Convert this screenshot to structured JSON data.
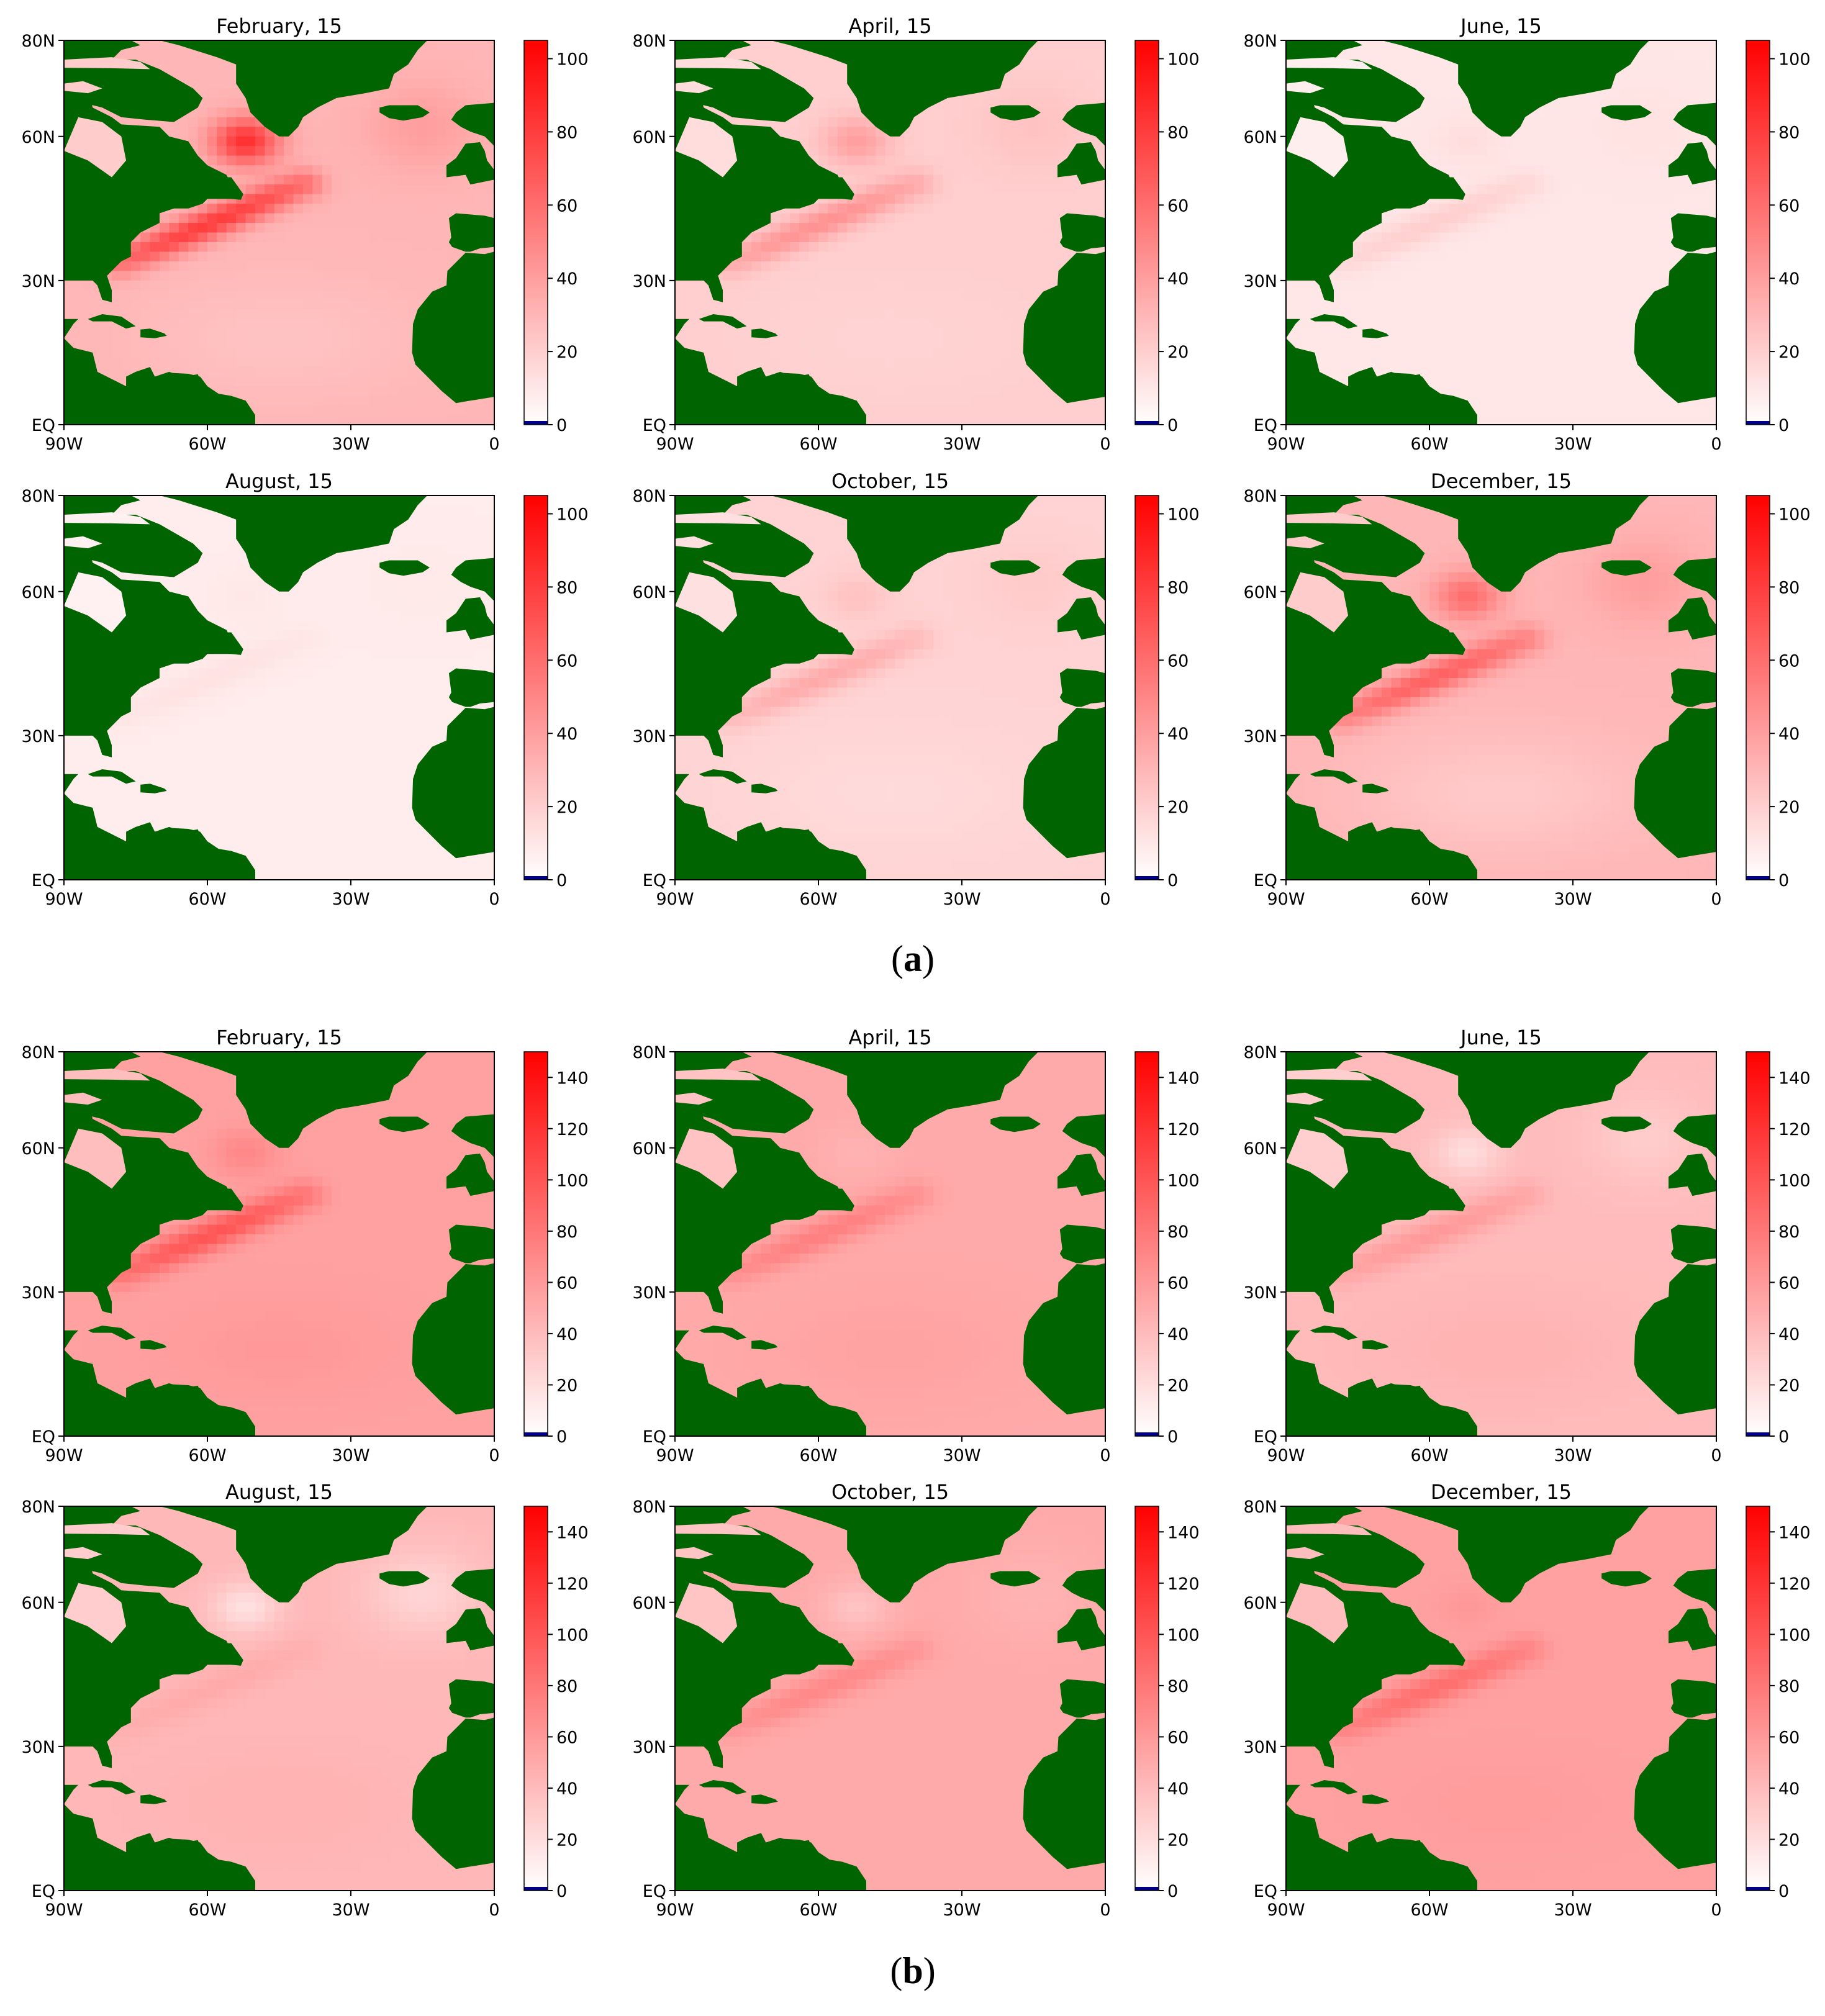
{
  "figure": {
    "panel_labels": [
      {
        "open": "(",
        "letter": "a",
        "close": ")"
      },
      {
        "open": "(",
        "letter": "b",
        "close": ")"
      }
    ]
  },
  "colors": {
    "land": "#006400",
    "ocean_low": "#ffffff",
    "ocean_high": "#ff0000",
    "colorbar_under": "#00008b",
    "axis": "#000000"
  },
  "chart_data": [
    {
      "type": "heatmap",
      "group": "a",
      "title": "February, 15",
      "xlabel": "",
      "ylabel": "",
      "xticks": [
        "90W",
        "60W",
        "30W",
        "0"
      ],
      "yticks": [
        "EQ",
        "30N",
        "60N",
        "80N"
      ],
      "xlim": [
        -90,
        0
      ],
      "ylim": [
        0,
        80
      ],
      "colorbar": {
        "min": 0,
        "max": 105,
        "ticks": [
          0,
          20,
          40,
          60,
          80,
          100
        ],
        "cmap": "white-red",
        "under_color": "navy"
      },
      "field": {
        "background": 30,
        "gulf_stream": 80,
        "labrador": 85,
        "subtropics": 25,
        "north_atlantic": 40
      }
    },
    {
      "type": "heatmap",
      "group": "a",
      "title": "April, 15",
      "xlabel": "",
      "ylabel": "",
      "xticks": [
        "90W",
        "60W",
        "30W",
        "0"
      ],
      "yticks": [
        "EQ",
        "30N",
        "60N",
        "80N"
      ],
      "xlim": [
        -90,
        0
      ],
      "ylim": [
        0,
        80
      ],
      "colorbar": {
        "min": 0,
        "max": 105,
        "ticks": [
          0,
          20,
          40,
          60,
          80,
          100
        ],
        "cmap": "white-red",
        "under_color": "navy"
      },
      "field": {
        "background": 20,
        "gulf_stream": 45,
        "labrador": 40,
        "subtropics": 18,
        "north_atlantic": 25
      }
    },
    {
      "type": "heatmap",
      "group": "a",
      "title": "June, 15",
      "xlabel": "",
      "ylabel": "",
      "xticks": [
        "90W",
        "60W",
        "30W",
        "0"
      ],
      "yticks": [
        "EQ",
        "30N",
        "60N",
        "80N"
      ],
      "xlim": [
        -90,
        0
      ],
      "ylim": [
        0,
        80
      ],
      "colorbar": {
        "min": 0,
        "max": 105,
        "ticks": [
          0,
          20,
          40,
          60,
          80,
          100
        ],
        "cmap": "white-red",
        "under_color": "navy"
      },
      "field": {
        "background": 10,
        "gulf_stream": 20,
        "labrador": 14,
        "subtropics": 10,
        "north_atlantic": 12
      }
    },
    {
      "type": "heatmap",
      "group": "a",
      "title": "August, 15",
      "xlabel": "",
      "ylabel": "",
      "xticks": [
        "90W",
        "60W",
        "30W",
        "0"
      ],
      "yticks": [
        "EQ",
        "30N",
        "60N",
        "80N"
      ],
      "xlim": [
        -90,
        0
      ],
      "ylim": [
        0,
        80
      ],
      "colorbar": {
        "min": 0,
        "max": 105,
        "ticks": [
          0,
          20,
          40,
          60,
          80,
          100
        ],
        "cmap": "white-red",
        "under_color": "navy"
      },
      "field": {
        "background": 8,
        "gulf_stream": 12,
        "labrador": 10,
        "subtropics": 8,
        "north_atlantic": 9
      }
    },
    {
      "type": "heatmap",
      "group": "a",
      "title": "October, 15",
      "xlabel": "",
      "ylabel": "",
      "xticks": [
        "90W",
        "60W",
        "30W",
        "0"
      ],
      "yticks": [
        "EQ",
        "30N",
        "60N",
        "80N"
      ],
      "xlim": [
        -90,
        0
      ],
      "ylim": [
        0,
        80
      ],
      "colorbar": {
        "min": 0,
        "max": 105,
        "ticks": [
          0,
          20,
          40,
          60,
          80,
          100
        ],
        "cmap": "white-red",
        "under_color": "navy"
      },
      "field": {
        "background": 18,
        "gulf_stream": 35,
        "labrador": 25,
        "subtropics": 15,
        "north_atlantic": 22
      }
    },
    {
      "type": "heatmap",
      "group": "a",
      "title": "December, 15",
      "xlabel": "",
      "ylabel": "",
      "xticks": [
        "90W",
        "60W",
        "30W",
        "0"
      ],
      "yticks": [
        "EQ",
        "30N",
        "60N",
        "80N"
      ],
      "xlim": [
        -90,
        0
      ],
      "ylim": [
        0,
        80
      ],
      "colorbar": {
        "min": 0,
        "max": 105,
        "ticks": [
          0,
          20,
          40,
          60,
          80,
          100
        ],
        "cmap": "white-red",
        "under_color": "navy"
      },
      "field": {
        "background": 30,
        "gulf_stream": 65,
        "labrador": 60,
        "subtropics": 22,
        "north_atlantic": 40
      }
    },
    {
      "type": "heatmap",
      "group": "b",
      "title": "February, 15",
      "xlabel": "",
      "ylabel": "",
      "xticks": [
        "90W",
        "60W",
        "30W",
        "0"
      ],
      "yticks": [
        "EQ",
        "30N",
        "60N",
        "80N"
      ],
      "xlim": [
        -90,
        0
      ],
      "ylim": [
        0,
        80
      ],
      "colorbar": {
        "min": 0,
        "max": 150,
        "ticks": [
          0,
          20,
          40,
          60,
          80,
          100,
          120,
          140
        ],
        "cmap": "white-red",
        "under_color": "navy"
      },
      "field": {
        "background": 55,
        "gulf_stream": 100,
        "labrador": 70,
        "subtropics": 60,
        "north_atlantic": 55
      }
    },
    {
      "type": "heatmap",
      "group": "b",
      "title": "April, 15",
      "xlabel": "",
      "ylabel": "",
      "xticks": [
        "90W",
        "60W",
        "30W",
        "0"
      ],
      "yticks": [
        "EQ",
        "30N",
        "60N",
        "80N"
      ],
      "xlim": [
        -90,
        0
      ],
      "ylim": [
        0,
        80
      ],
      "colorbar": {
        "min": 0,
        "max": 150,
        "ticks": [
          0,
          20,
          40,
          60,
          80,
          100,
          120,
          140
        ],
        "cmap": "white-red",
        "under_color": "navy"
      },
      "field": {
        "background": 50,
        "gulf_stream": 75,
        "labrador": 45,
        "subtropics": 55,
        "north_atlantic": 50
      }
    },
    {
      "type": "heatmap",
      "group": "b",
      "title": "June, 15",
      "xlabel": "",
      "ylabel": "",
      "xticks": [
        "90W",
        "60W",
        "30W",
        "0"
      ],
      "yticks": [
        "EQ",
        "30N",
        "60N",
        "80N"
      ],
      "xlim": [
        -90,
        0
      ],
      "ylim": [
        0,
        80
      ],
      "colorbar": {
        "min": 0,
        "max": 150,
        "ticks": [
          0,
          20,
          40,
          60,
          80,
          100,
          120,
          140
        ],
        "cmap": "white-red",
        "under_color": "navy"
      },
      "field": {
        "background": 40,
        "gulf_stream": 60,
        "labrador": 20,
        "subtropics": 45,
        "north_atlantic": 30
      }
    },
    {
      "type": "heatmap",
      "group": "b",
      "title": "August, 15",
      "xlabel": "",
      "ylabel": "",
      "xticks": [
        "90W",
        "60W",
        "30W",
        "0"
      ],
      "yticks": [
        "EQ",
        "30N",
        "60N",
        "80N"
      ],
      "xlim": [
        -90,
        0
      ],
      "ylim": [
        0,
        80
      ],
      "colorbar": {
        "min": 0,
        "max": 150,
        "ticks": [
          0,
          20,
          40,
          60,
          80,
          100,
          120,
          140
        ],
        "cmap": "white-red",
        "under_color": "navy"
      },
      "field": {
        "background": 42,
        "gulf_stream": 50,
        "labrador": 18,
        "subtropics": 45,
        "north_atlantic": 25
      }
    },
    {
      "type": "heatmap",
      "group": "b",
      "title": "October, 15",
      "xlabel": "",
      "ylabel": "",
      "xticks": [
        "90W",
        "60W",
        "30W",
        "0"
      ],
      "yticks": [
        "EQ",
        "30N",
        "60N",
        "80N"
      ],
      "xlim": [
        -90,
        0
      ],
      "ylim": [
        0,
        80
      ],
      "colorbar": {
        "min": 0,
        "max": 150,
        "ticks": [
          0,
          20,
          40,
          60,
          80,
          100,
          120,
          140
        ],
        "cmap": "white-red",
        "under_color": "navy"
      },
      "field": {
        "background": 50,
        "gulf_stream": 70,
        "labrador": 35,
        "subtropics": 50,
        "north_atlantic": 45
      }
    },
    {
      "type": "heatmap",
      "group": "b",
      "title": "December, 15",
      "xlabel": "",
      "ylabel": "",
      "xticks": [
        "90W",
        "60W",
        "30W",
        "0"
      ],
      "yticks": [
        "EQ",
        "30N",
        "60N",
        "80N"
      ],
      "xlim": [
        -90,
        0
      ],
      "ylim": [
        0,
        80
      ],
      "colorbar": {
        "min": 0,
        "max": 150,
        "ticks": [
          0,
          20,
          40,
          60,
          80,
          100,
          120,
          140
        ],
        "cmap": "white-red",
        "under_color": "navy"
      },
      "field": {
        "background": 55,
        "gulf_stream": 85,
        "labrador": 60,
        "subtropics": 58,
        "north_atlantic": 55
      }
    }
  ]
}
